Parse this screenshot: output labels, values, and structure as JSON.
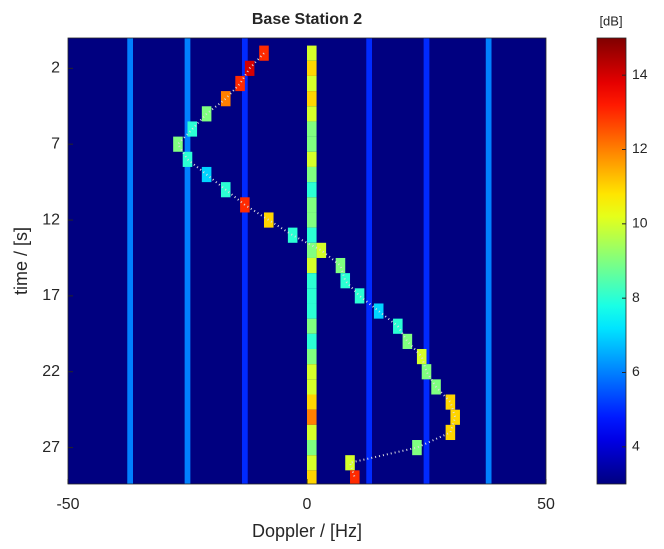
{
  "chart_data": {
    "type": "heatmap",
    "title": "Base Station 2",
    "xlabel": "Doppler / [Hz]",
    "ylabel": "time / [s]",
    "colorbar_label": "[dB]",
    "xlim": [
      -50,
      50
    ],
    "ylim": [
      0,
      29.4
    ],
    "xticks": [
      -50,
      0,
      50
    ],
    "yticks": [
      2,
      7,
      12,
      17,
      22,
      27
    ],
    "clim": [
      3,
      15
    ],
    "cticks": [
      4,
      6,
      8,
      10,
      12,
      14
    ],
    "colormap": "jet",
    "background": 3,
    "lines": {
      "doppler": [
        -37,
        -25,
        -13,
        13,
        25,
        38
      ],
      "values": [
        6,
        6,
        5,
        5,
        5,
        6
      ]
    },
    "time": [
      1,
      2,
      3,
      4,
      5,
      6,
      7,
      8,
      9,
      10,
      11,
      12,
      13,
      14,
      15,
      16,
      17,
      18,
      19,
      20,
      21,
      22,
      23,
      24,
      25,
      26,
      27,
      28,
      29
    ],
    "zero_doppler": 1,
    "zero_values": [
      10,
      11,
      10,
      11,
      10,
      9,
      9,
      10,
      9,
      8,
      9,
      9,
      8,
      9,
      10,
      8,
      8,
      8,
      9,
      8,
      9,
      10,
      10,
      11,
      12,
      10,
      9,
      10,
      11
    ],
    "track_doppler": [
      -9,
      -12,
      -14,
      -17,
      -21,
      -24,
      -27,
      -25,
      -21,
      -17,
      -13,
      -8,
      -3,
      3,
      7,
      8,
      11,
      15,
      19,
      21,
      24,
      25,
      27,
      30,
      31,
      30,
      23,
      9,
      10
    ],
    "track_values": [
      13,
      14,
      13,
      12,
      9,
      8,
      9,
      8,
      7,
      8,
      13,
      11,
      8,
      10,
      9,
      8,
      8,
      7,
      8,
      9,
      10,
      9,
      9,
      11,
      11,
      11,
      9,
      10,
      13
    ]
  }
}
